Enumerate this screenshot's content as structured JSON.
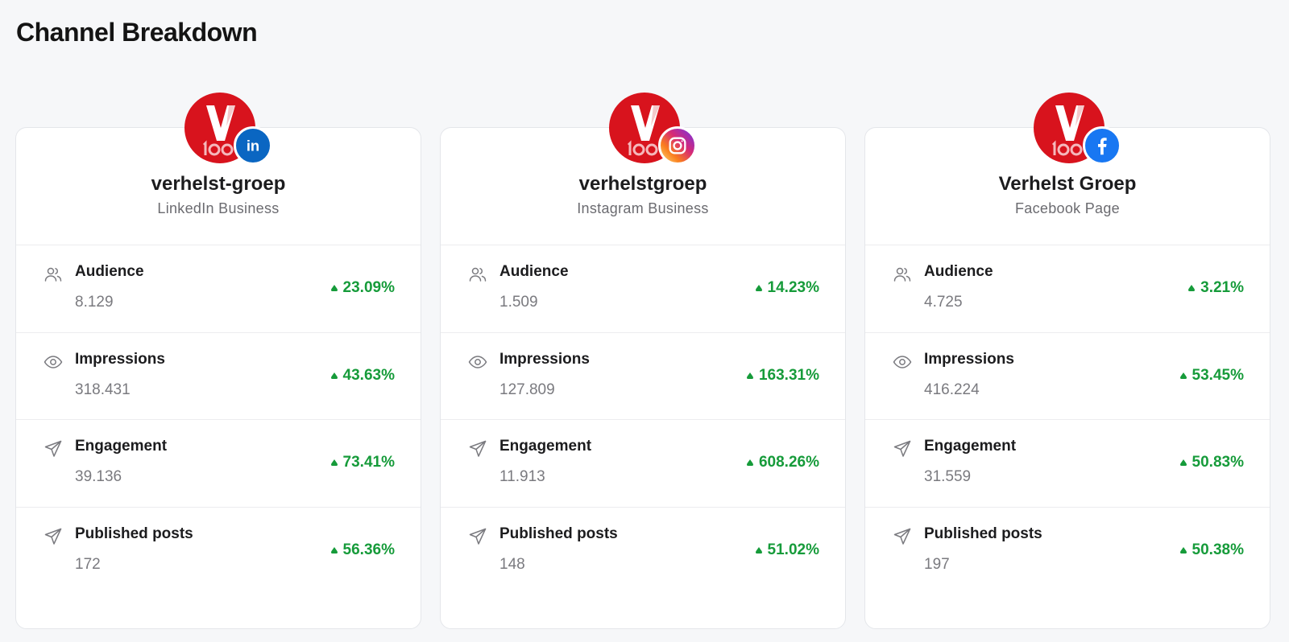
{
  "page": {
    "title": "Channel Breakdown"
  },
  "colors": {
    "accent_positive": "#169b3a",
    "brand_red": "#d8131d",
    "linkedin": "#0a66c2",
    "facebook": "#1877f2"
  },
  "channels": [
    {
      "name": "verhelst-groep",
      "type": "LinkedIn Business",
      "network_icon": "linkedin-icon",
      "metrics": [
        {
          "label": "Audience",
          "value": "8.129",
          "change": "23.09%",
          "icon": "users-icon"
        },
        {
          "label": "Impressions",
          "value": "318.431",
          "change": "43.63%",
          "icon": "eye-icon"
        },
        {
          "label": "Engagement",
          "value": "39.136",
          "change": "73.41%",
          "icon": "send-icon"
        },
        {
          "label": "Published posts",
          "value": "172",
          "change": "56.36%",
          "icon": "send-icon"
        }
      ]
    },
    {
      "name": "verhelstgroep",
      "type": "Instagram Business",
      "network_icon": "instagram-icon",
      "metrics": [
        {
          "label": "Audience",
          "value": "1.509",
          "change": "14.23%",
          "icon": "users-icon"
        },
        {
          "label": "Impressions",
          "value": "127.809",
          "change": "163.31%",
          "icon": "eye-icon"
        },
        {
          "label": "Engagement",
          "value": "11.913",
          "change": "608.26%",
          "icon": "send-icon"
        },
        {
          "label": "Published posts",
          "value": "148",
          "change": "51.02%",
          "icon": "send-icon"
        }
      ]
    },
    {
      "name": "Verhelst Groep",
      "type": "Facebook Page",
      "network_icon": "facebook-icon",
      "metrics": [
        {
          "label": "Audience",
          "value": "4.725",
          "change": "3.21%",
          "icon": "users-icon"
        },
        {
          "label": "Impressions",
          "value": "416.224",
          "change": "53.45%",
          "icon": "eye-icon"
        },
        {
          "label": "Engagement",
          "value": "31.559",
          "change": "50.83%",
          "icon": "send-icon"
        },
        {
          "label": "Published posts",
          "value": "197",
          "change": "50.38%",
          "icon": "send-icon"
        }
      ]
    }
  ]
}
